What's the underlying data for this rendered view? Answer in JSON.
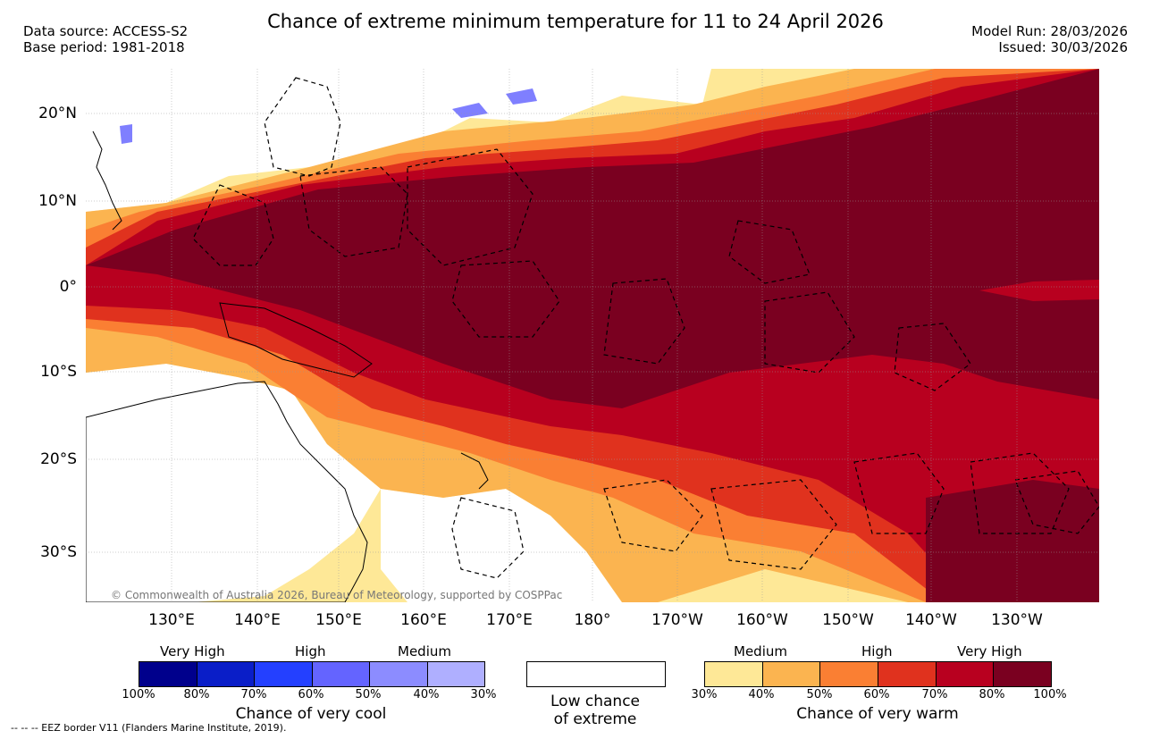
{
  "header": {
    "data_source": "Data source: ACCESS-S2",
    "base_period": "Base period: 1981-2018",
    "title": "Chance of extreme minimum temperature for 11 to 24 April 2026",
    "model_run": "Model Run: 28/03/2026",
    "issued": "Issued: 30/03/2026"
  },
  "map": {
    "lat_labels": [
      "20°N",
      "10°N",
      "0°",
      "10°S",
      "20°S",
      "30°S"
    ],
    "lon_labels": [
      "130°E",
      "140°E",
      "150°E",
      "160°E",
      "170°E",
      "180°",
      "170°W",
      "160°W",
      "150°W",
      "140°W",
      "130°W"
    ],
    "copyright": "© Commonwealth of Australia 2026, Bureau of Meteorology, supported by COSPPac",
    "colors": {
      "very_high_warm_dark": "#7a0020",
      "very_high_warm": "#b8001f",
      "high_warm_dark": "#e0321e",
      "high_warm": "#fa7f33",
      "medium_warm_dark": "#fbb450",
      "medium_warm": "#fee897",
      "cool": "#7f7fff",
      "land_outline": "#000000"
    }
  },
  "legend": {
    "cool": {
      "levels": [
        "Very High",
        "High",
        "Medium"
      ],
      "ticks": [
        "100%",
        "80%",
        "70%",
        "60%",
        "50%",
        "40%",
        "30%"
      ],
      "colors": [
        "#00008c",
        "#0a1ec8",
        "#2440ff",
        "#6464ff",
        "#8c8cff",
        "#afafff"
      ],
      "caption": "Chance of very cool"
    },
    "low": {
      "caption_line1": "Low chance",
      "caption_line2": "of extreme"
    },
    "warm": {
      "levels": [
        "Medium",
        "High",
        "Very High"
      ],
      "ticks": [
        "30%",
        "40%",
        "50%",
        "60%",
        "70%",
        "80%",
        "100%"
      ],
      "colors": [
        "#fee897",
        "#fbb450",
        "#fa7f33",
        "#e0321e",
        "#b8001f",
        "#7a0020"
      ],
      "caption": "Chance of very warm"
    }
  },
  "eez_note": "-- -- -- EEZ border V11 (Flanders Marine Institute, 2019)."
}
